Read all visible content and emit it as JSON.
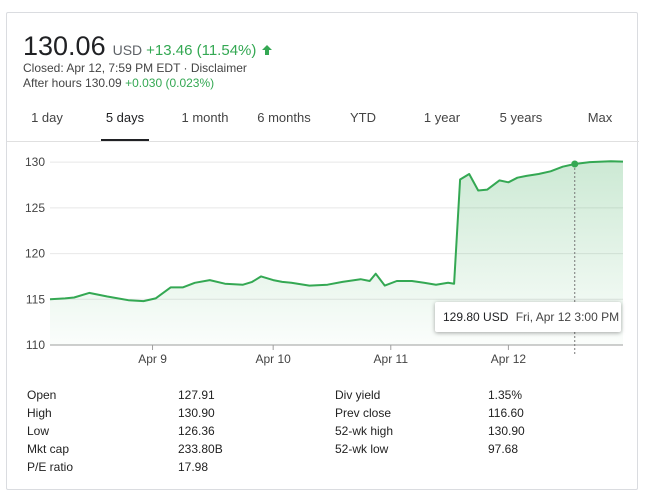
{
  "quote": {
    "price": "130.06",
    "currency": "USD",
    "change": "+13.46 (11.54%)",
    "closed_text": "Closed: Apr 12, 7:59 PM EDT · Disclaimer",
    "after_hours_label": "After hours 130.09",
    "after_hours_change": "+0.030 (0.023%)",
    "accent_color": "#34a853"
  },
  "tabs": [
    {
      "label": "1 day",
      "active": false
    },
    {
      "label": "5 days",
      "active": true
    },
    {
      "label": "1 month",
      "active": false
    },
    {
      "label": "6 months",
      "active": false
    },
    {
      "label": "YTD",
      "active": false
    },
    {
      "label": "1 year",
      "active": false
    },
    {
      "label": "5 years",
      "active": false
    },
    {
      "label": "Max",
      "active": false
    }
  ],
  "tooltip": {
    "price": "129.80 USD",
    "date": "Fri, Apr 12 3:00 PM"
  },
  "chart_data": {
    "type": "area",
    "title": "",
    "ylim": [
      110,
      131
    ],
    "yticks": [
      110,
      115,
      120,
      125,
      130
    ],
    "x_labels": [
      "Apr 9",
      "Apr 10",
      "Apr 11",
      "Apr 12"
    ],
    "line_color": "#34a853",
    "x_range": [
      0,
      190
    ],
    "label_positions": [
      34,
      74,
      113,
      152
    ],
    "series": [
      {
        "x": [
          0,
          5,
          8,
          13,
          19,
          26,
          31,
          35,
          40,
          44,
          48,
          53,
          58,
          64,
          67,
          70,
          74,
          77,
          80,
          86,
          92,
          97,
          101,
          103,
          106,
          108,
          111,
          115,
          120,
          124,
          128,
          132,
          134,
          136,
          139,
          142,
          145,
          149,
          152,
          155,
          158,
          162,
          166,
          170,
          174,
          179,
          186,
          190
        ],
        "y": [
          115.0,
          115.1,
          115.2,
          115.7,
          115.3,
          114.9,
          114.8,
          115.1,
          116.3,
          116.3,
          116.8,
          117.1,
          116.7,
          116.6,
          116.9,
          117.5,
          117.1,
          116.9,
          116.8,
          116.5,
          116.6,
          116.9,
          117.1,
          117.2,
          117.0,
          117.8,
          116.5,
          117.0,
          117.0,
          116.8,
          116.6,
          116.8,
          116.7,
          128.1,
          128.7,
          126.9,
          127.0,
          128.0,
          127.8,
          128.3,
          128.5,
          128.7,
          129.0,
          129.5,
          129.8,
          130.0,
          130.1,
          130.06
        ]
      }
    ],
    "highlight_point": {
      "x": 174,
      "y": 129.8
    }
  },
  "stats": {
    "left": [
      {
        "label": "Open",
        "value": "127.91"
      },
      {
        "label": "High",
        "value": "130.90"
      },
      {
        "label": "Low",
        "value": "126.36"
      },
      {
        "label": "Mkt cap",
        "value": "233.80B"
      },
      {
        "label": "P/E ratio",
        "value": "17.98"
      }
    ],
    "right": [
      {
        "label": "Div yield",
        "value": "1.35%"
      },
      {
        "label": "Prev close",
        "value": "116.60"
      },
      {
        "label": "52-wk high",
        "value": "130.90"
      },
      {
        "label": "52-wk low",
        "value": "97.68"
      }
    ]
  }
}
